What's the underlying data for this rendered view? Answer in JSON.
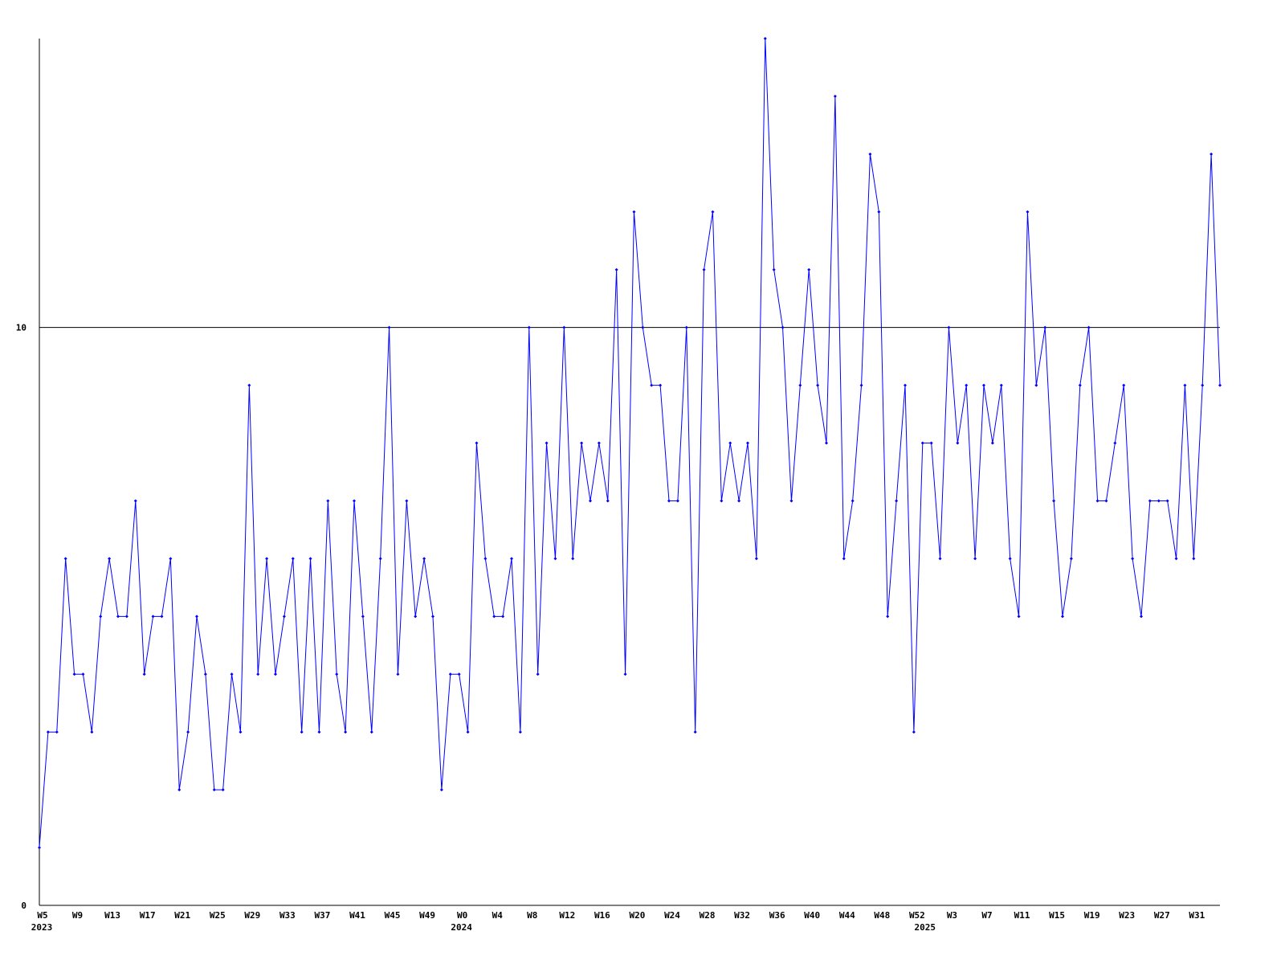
{
  "chart_data": {
    "type": "line",
    "categories": [
      "W5",
      null,
      null,
      null,
      "W9",
      null,
      null,
      null,
      "W13",
      null,
      null,
      null,
      "W17",
      null,
      null,
      null,
      "W21",
      null,
      null,
      null,
      "W25",
      null,
      null,
      null,
      "W29",
      null,
      null,
      null,
      "W33",
      null,
      null,
      null,
      "W37",
      null,
      null,
      null,
      "W41",
      null,
      null,
      null,
      "W45",
      null,
      null,
      null,
      "W49",
      null,
      null,
      null,
      "W0",
      null,
      null,
      null,
      "W4",
      null,
      null,
      null,
      "W8",
      null,
      null,
      null,
      "W12",
      null,
      null,
      null,
      "W16",
      null,
      null,
      null,
      "W20",
      null,
      null,
      null,
      "W24",
      null,
      null,
      null,
      "W28",
      null,
      null,
      null,
      "W32",
      null,
      null,
      null,
      "W36",
      null,
      null,
      null,
      "W40",
      null,
      null,
      null,
      "W44",
      null,
      null,
      null,
      "W48",
      null,
      null,
      null,
      "W52",
      null,
      null,
      null,
      "W3",
      null,
      null,
      null,
      "W7",
      null,
      null,
      null,
      "W11",
      null,
      null,
      null,
      "W15",
      null,
      null,
      null,
      "W19",
      null,
      null,
      null,
      "W23",
      null,
      null,
      null,
      "W27",
      null,
      null,
      null,
      "W31",
      null,
      null,
      null
    ],
    "years": [
      "2023",
      null,
      null,
      null,
      null,
      null,
      null,
      null,
      null,
      null,
      null,
      null,
      null,
      null,
      null,
      null,
      null,
      null,
      null,
      null,
      null,
      null,
      null,
      null,
      null,
      null,
      null,
      null,
      null,
      null,
      null,
      null,
      null,
      null,
      null,
      null,
      null,
      null,
      null,
      null,
      null,
      null,
      null,
      null,
      null,
      null,
      null,
      null,
      "2024",
      null,
      null,
      null,
      null,
      null,
      null,
      null,
      null,
      null,
      null,
      null,
      null,
      null,
      null,
      null,
      null,
      null,
      null,
      null,
      null,
      null,
      null,
      null,
      null,
      null,
      null,
      null,
      null,
      null,
      null,
      null,
      null,
      null,
      null,
      null,
      null,
      null,
      null,
      null,
      null,
      null,
      null,
      null,
      null,
      null,
      null,
      null,
      null,
      null,
      null,
      null,
      null,
      "2025",
      null,
      null,
      null,
      null,
      null,
      null,
      null,
      null,
      null,
      null,
      null,
      null,
      null,
      null,
      null,
      null,
      null,
      null,
      null,
      null,
      null,
      null,
      null,
      null,
      null,
      null,
      null,
      null,
      null,
      null,
      null,
      null,
      null,
      null
    ],
    "series": [
      {
        "color": "#0000ff",
        "values": [
          1,
          3,
          3,
          6,
          4,
          4,
          3,
          5,
          6,
          5,
          5,
          7,
          4,
          5,
          5,
          6,
          2,
          3,
          5,
          4,
          2,
          2,
          4,
          3,
          9,
          4,
          6,
          4,
          5,
          6,
          3,
          6,
          3,
          7,
          4,
          3,
          7,
          5,
          3,
          6,
          10,
          4,
          7,
          5,
          6,
          5,
          2,
          4,
          4,
          3,
          8,
          6,
          5,
          5,
          6,
          3,
          10,
          4,
          8,
          6,
          10,
          6,
          8,
          7,
          8,
          7,
          11,
          4,
          12,
          10,
          9,
          9,
          7,
          7,
          10,
          3,
          11,
          12,
          7,
          8,
          7,
          8,
          6,
          15,
          11,
          10,
          7,
          9,
          11,
          9,
          8,
          14,
          6,
          7,
          9,
          13,
          12,
          5,
          7,
          9,
          3,
          8,
          8,
          6,
          10,
          8,
          9,
          6,
          9,
          8,
          9,
          6,
          5,
          12,
          9,
          10,
          7,
          5,
          6,
          9,
          10,
          7,
          7,
          8,
          9,
          6,
          5,
          7,
          7,
          7,
          6,
          9,
          6,
          9,
          13,
          9
        ]
      }
    ],
    "ylim": [
      0,
      15
    ],
    "yticks": [
      0,
      10
    ],
    "grid": true
  }
}
